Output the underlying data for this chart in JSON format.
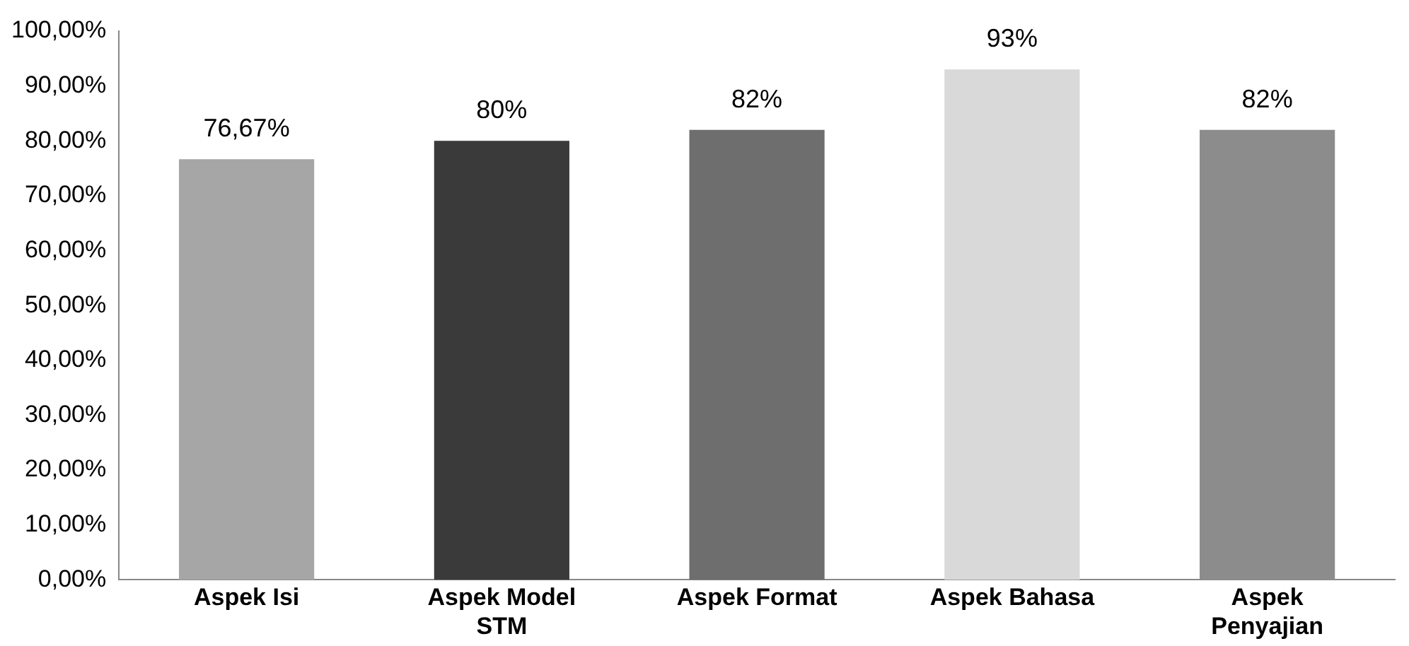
{
  "chart_data": {
    "type": "bar",
    "categories": [
      "Aspek Isi",
      "Aspek Model STM",
      "Aspek Format",
      "Aspek Bahasa",
      "Aspek Penyajian"
    ],
    "values": [
      76.67,
      80,
      82,
      93,
      82
    ],
    "colors": [
      "#a6a6a6",
      "#3a3a3a",
      "#6e6e6e",
      "#d9d9d9",
      "#8c8c8c"
    ],
    "value_labels": [
      "76,67%",
      "80%",
      "82%",
      "93%",
      "82%"
    ],
    "ylim": [
      0,
      100
    ],
    "yticks": [
      {
        "value": 0,
        "label": "0,00%"
      },
      {
        "value": 10,
        "label": "10,00%"
      },
      {
        "value": 20,
        "label": "20,00%"
      },
      {
        "value": 30,
        "label": "30,00%"
      },
      {
        "value": 40,
        "label": "40,00%"
      },
      {
        "value": 50,
        "label": "50,00%"
      },
      {
        "value": 60,
        "label": "60,00%"
      },
      {
        "value": 70,
        "label": "70,00%"
      },
      {
        "value": 80,
        "label": "80,00%"
      },
      {
        "value": 90,
        "label": "90,00%"
      },
      {
        "value": 100,
        "label": "100,00%"
      }
    ],
    "grid": false,
    "legend": false
  }
}
